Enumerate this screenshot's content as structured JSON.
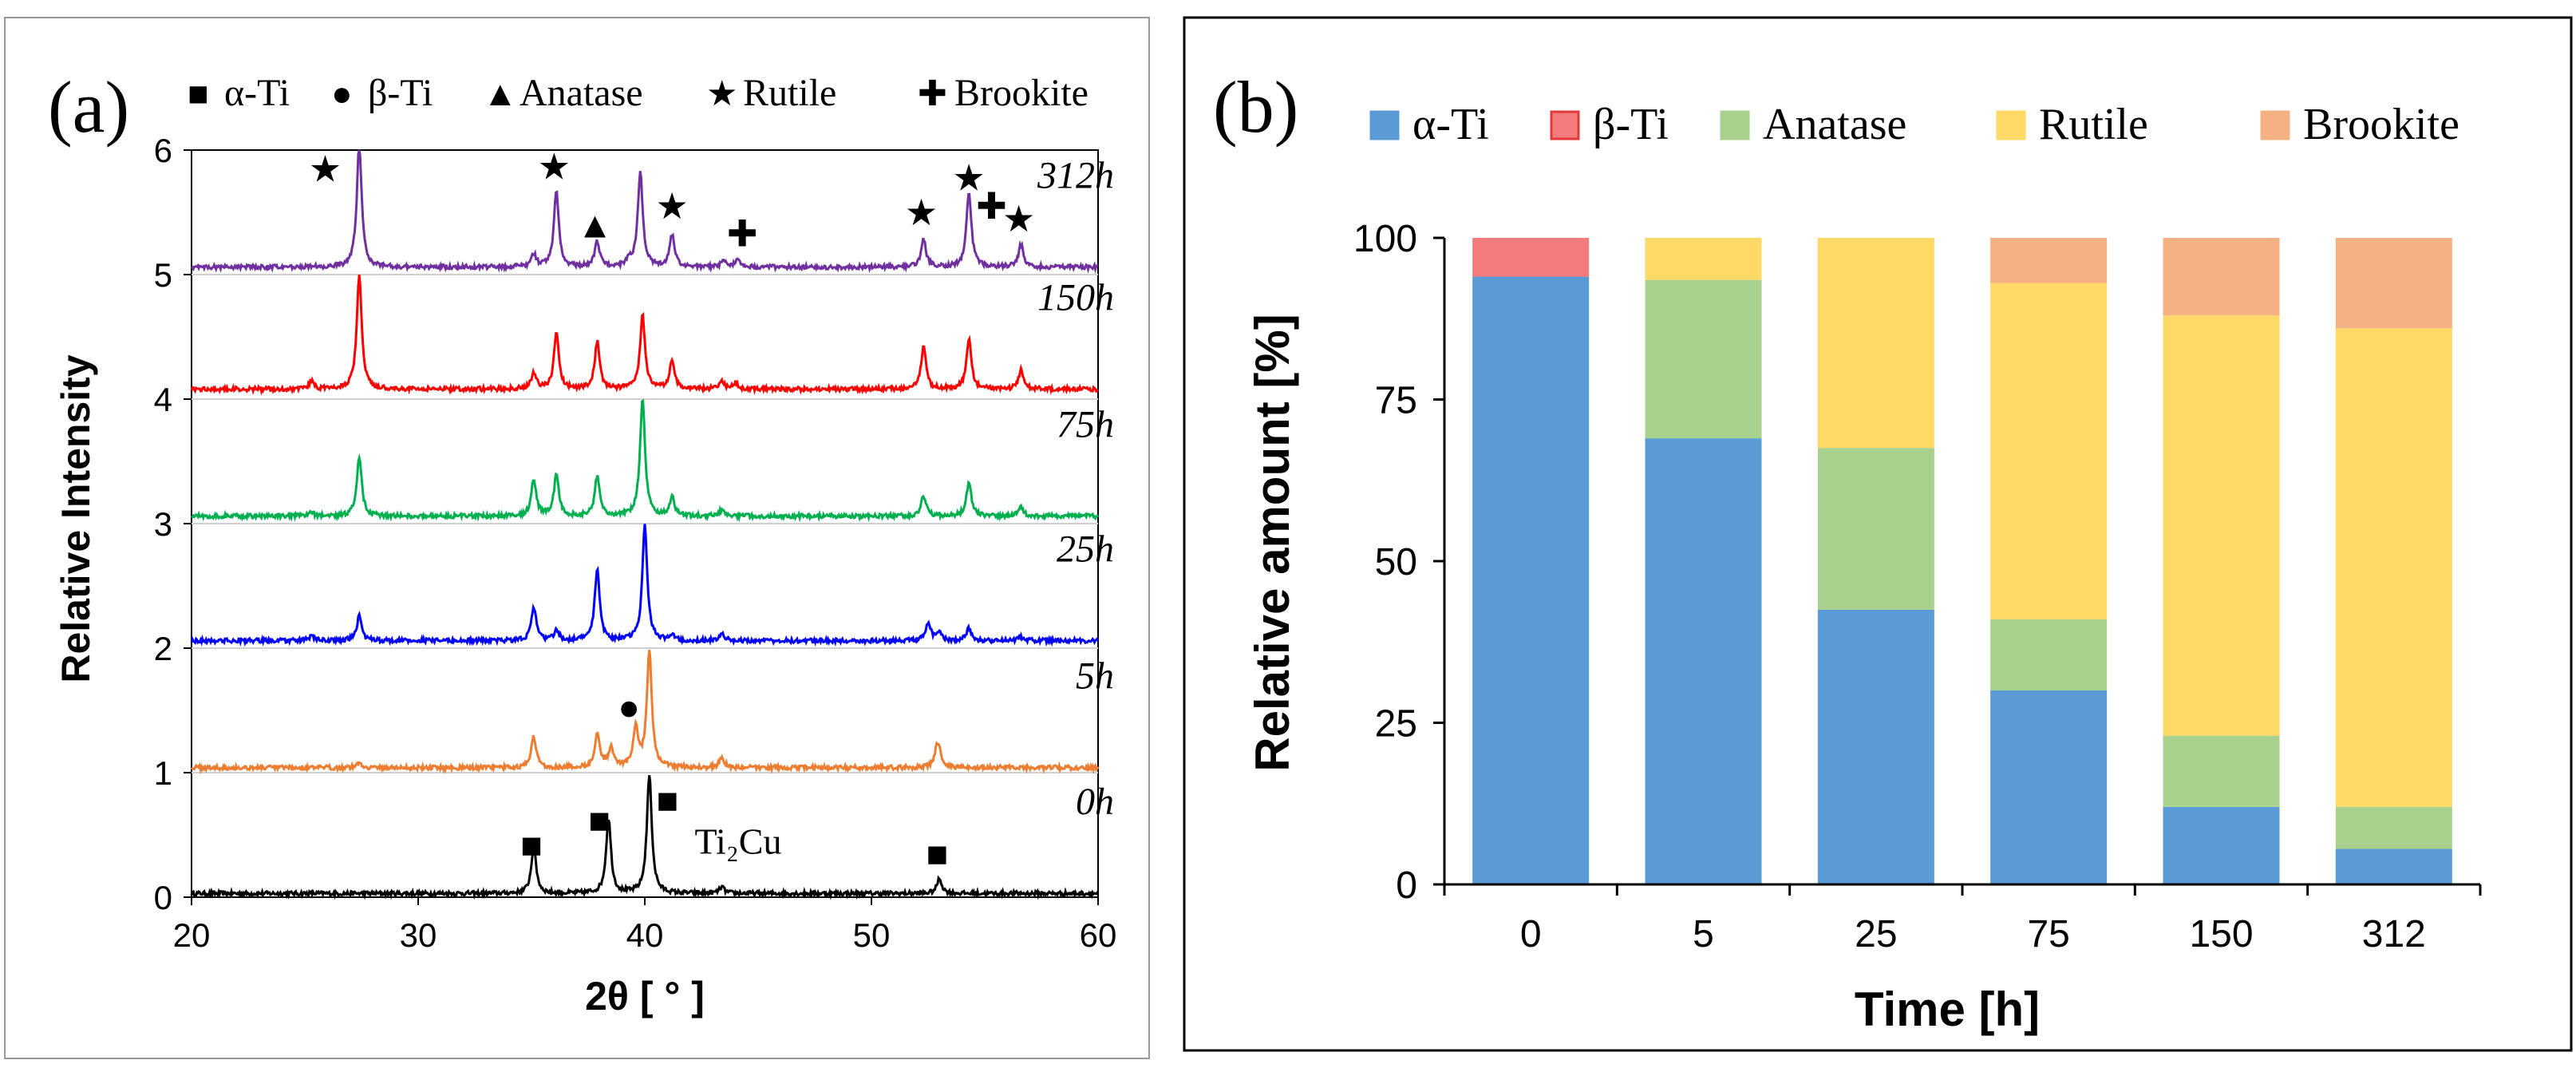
{
  "chart_data": [
    {
      "panel_label": "(a)",
      "type": "line",
      "title": "",
      "xlabel": "2θ [ ° ]",
      "ylabel": "Relative Intensity",
      "xlim": [
        20,
        60
      ],
      "ylim": [
        0,
        6
      ],
      "xticks": [
        "20",
        "30",
        "40",
        "50",
        "60"
      ],
      "yticks": [
        "0",
        "1",
        "2",
        "3",
        "4",
        "5",
        "6"
      ],
      "legend": [
        {
          "symbol": "■",
          "label": "α-Ti"
        },
        {
          "symbol": "●",
          "label": "β-Ti"
        },
        {
          "symbol": "▲",
          "label": "Anatase"
        },
        {
          "symbol": "★",
          "label": "Rutile"
        },
        {
          "symbol": "✚",
          "label": "Brookite"
        }
      ],
      "series": [
        {
          "name": "0h",
          "color": "#000000",
          "baseline": 0.03,
          "peaks": [
            [
              35.1,
              0.38
            ],
            [
              38.4,
              0.6
            ],
            [
              40.2,
              0.95
            ],
            [
              43.4,
              0.05
            ],
            [
              53.0,
              0.12
            ]
          ]
        },
        {
          "name": "5h",
          "color": "#ED7D31",
          "baseline": 1.04,
          "peaks": [
            [
              27.4,
              0.04
            ],
            [
              35.1,
              0.25
            ],
            [
              37.9,
              0.28
            ],
            [
              38.5,
              0.15
            ],
            [
              39.6,
              0.32
            ],
            [
              40.2,
              0.93
            ],
            [
              43.4,
              0.08
            ],
            [
              52.9,
              0.15
            ],
            [
              53.0,
              0.08
            ]
          ]
        },
        {
          "name": "25h",
          "color": "#0000FF",
          "baseline": 2.06,
          "peaks": [
            [
              25.3,
              0.04
            ],
            [
              27.4,
              0.2
            ],
            [
              35.1,
              0.27
            ],
            [
              36.1,
              0.08
            ],
            [
              37.9,
              0.58
            ],
            [
              40.0,
              0.92
            ],
            [
              41.2,
              0.05
            ],
            [
              43.4,
              0.05
            ],
            [
              52.5,
              0.15
            ],
            [
              53.0,
              0.06
            ],
            [
              54.3,
              0.1
            ],
            [
              56.6,
              0.03
            ]
          ]
        },
        {
          "name": "75h",
          "color": "#00B050",
          "baseline": 3.06,
          "peaks": [
            [
              25.3,
              0.03
            ],
            [
              27.4,
              0.48
            ],
            [
              35.1,
              0.3
            ],
            [
              36.1,
              0.33
            ],
            [
              37.9,
              0.32
            ],
            [
              39.9,
              0.95
            ],
            [
              41.2,
              0.15
            ],
            [
              43.4,
              0.05
            ],
            [
              52.3,
              0.16
            ],
            [
              54.3,
              0.27
            ],
            [
              56.6,
              0.07
            ]
          ]
        },
        {
          "name": "150h",
          "color": "#FF0000",
          "baseline": 4.08,
          "peaks": [
            [
              25.3,
              0.06
            ],
            [
              27.4,
              0.92
            ],
            [
              35.1,
              0.13
            ],
            [
              36.1,
              0.45
            ],
            [
              37.9,
              0.38
            ],
            [
              39.9,
              0.59
            ],
            [
              41.2,
              0.23
            ],
            [
              43.4,
              0.07
            ],
            [
              44.0,
              0.05
            ],
            [
              52.3,
              0.34
            ],
            [
              54.3,
              0.4
            ],
            [
              56.6,
              0.15
            ]
          ]
        },
        {
          "name": "312h",
          "color": "#7030A0",
          "baseline": 5.06,
          "peaks": [
            [
              27.4,
              0.98
            ],
            [
              35.1,
              0.1
            ],
            [
              36.1,
              0.61
            ],
            [
              37.9,
              0.2
            ],
            [
              39.3,
              0.05
            ],
            [
              39.8,
              0.76
            ],
            [
              41.2,
              0.26
            ],
            [
              43.5,
              0.06
            ],
            [
              44.1,
              0.06
            ],
            [
              52.3,
              0.22
            ],
            [
              54.3,
              0.61
            ],
            [
              56.6,
              0.18
            ]
          ]
        }
      ],
      "annotations": [
        {
          "text": "★",
          "x": 25.9,
          "y": 5.85
        },
        {
          "text": "★",
          "x": 36.0,
          "y": 5.87
        },
        {
          "text": "▲",
          "x": 37.8,
          "y": 5.4
        },
        {
          "text": "★",
          "x": 41.2,
          "y": 5.55
        },
        {
          "text": "✚",
          "x": 44.3,
          "y": 5.33
        },
        {
          "text": "★",
          "x": 52.2,
          "y": 5.5
        },
        {
          "text": "★",
          "x": 54.3,
          "y": 5.78
        },
        {
          "text": "✚",
          "x": 55.3,
          "y": 5.55
        },
        {
          "text": "★",
          "x": 56.5,
          "y": 5.45
        },
        {
          "text": "●",
          "x": 39.3,
          "y": 1.53
        },
        {
          "text": "■",
          "x": 35.0,
          "y": 0.42
        },
        {
          "text": "■",
          "x": 38.0,
          "y": 0.62
        },
        {
          "text": "■",
          "x": 41.0,
          "y": 0.78
        },
        {
          "text": "■",
          "x": 52.9,
          "y": 0.35
        },
        {
          "text": "Ti₂Cu",
          "x": 42.2,
          "y": 0.35
        }
      ]
    },
    {
      "panel_label": "(b)",
      "type": "bar",
      "stacked": true,
      "title": "",
      "xlabel": "Time [h]",
      "ylabel": "Relative amount [%]",
      "ylim": [
        0,
        100
      ],
      "yticks": [
        "0",
        "25",
        "50",
        "75",
        "100"
      ],
      "categories": [
        "0",
        "5",
        "25",
        "75",
        "150",
        "312"
      ],
      "legend_position": "top",
      "series": [
        {
          "name": "α-Ti",
          "color": "#5B9BD5",
          "values": [
            94,
            69,
            42.5,
            30,
            12,
            5.5
          ]
        },
        {
          "name": "β-Ti",
          "color": "#F47B7B",
          "values": [
            6,
            0,
            0,
            0,
            0,
            0
          ]
        },
        {
          "name": "Anatase",
          "color": "#A9D18E",
          "values": [
            0,
            24.5,
            25,
            11,
            11,
            6.5
          ]
        },
        {
          "name": "Rutile",
          "color": "#FFD966",
          "values": [
            0,
            6.5,
            32.5,
            52,
            65,
            74
          ]
        },
        {
          "name": "Brookite",
          "color": "#F4B183",
          "values": [
            0,
            0,
            0,
            7,
            12,
            14
          ]
        }
      ]
    }
  ]
}
